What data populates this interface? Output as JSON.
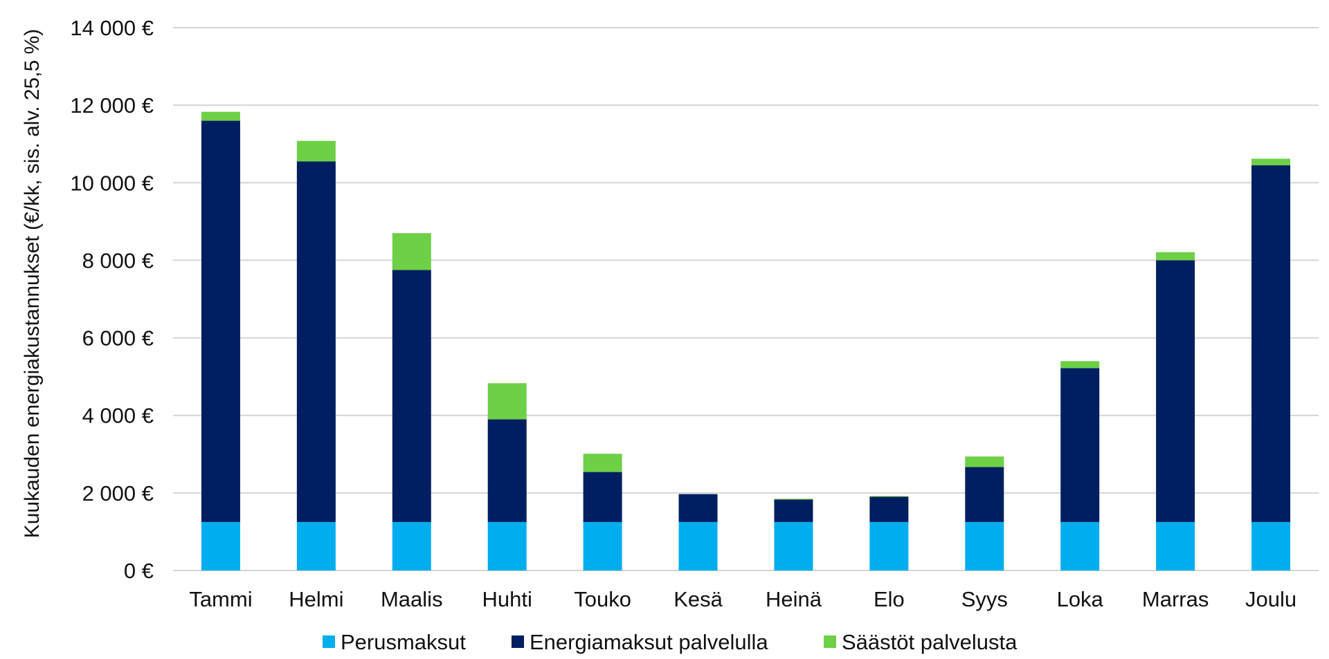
{
  "chart_data": {
    "type": "bar",
    "stacked": true,
    "title": "",
    "xlabel": "",
    "ylabel": "Kuukauden energiakustannukset (€/kk, sis. alv. 25,5 %)",
    "ylim": [
      0,
      14000
    ],
    "yticks": [
      0,
      2000,
      4000,
      6000,
      8000,
      10000,
      12000,
      14000
    ],
    "ytick_labels": [
      "0 €",
      "2 000 €",
      "4 000 €",
      "6 000 €",
      "8 000 €",
      "10 000 €",
      "12 000 €",
      "14 000 €"
    ],
    "grid": true,
    "legend_position": "bottom",
    "categories": [
      "Tammi",
      "Helmi",
      "Maalis",
      "Huhti",
      "Touko",
      "Kesä",
      "Heinä",
      "Elo",
      "Syys",
      "Loka",
      "Marras",
      "Joulu"
    ],
    "series": [
      {
        "name": "Perusmaksut",
        "color": "#00aeef",
        "values": [
          1250,
          1250,
          1250,
          1250,
          1250,
          1250,
          1250,
          1250,
          1250,
          1250,
          1250,
          1250
        ]
      },
      {
        "name": "Energiamaksut palvelulla",
        "color": "#001e60",
        "values": [
          10350,
          9300,
          6500,
          2650,
          1290,
          720,
          580,
          650,
          1420,
          3970,
          6750,
          9200
        ]
      },
      {
        "name": "Säästöt palvelusta",
        "color": "#6dd046",
        "values": [
          230,
          530,
          950,
          930,
          470,
          0,
          20,
          20,
          270,
          180,
          210,
          170
        ]
      }
    ]
  }
}
